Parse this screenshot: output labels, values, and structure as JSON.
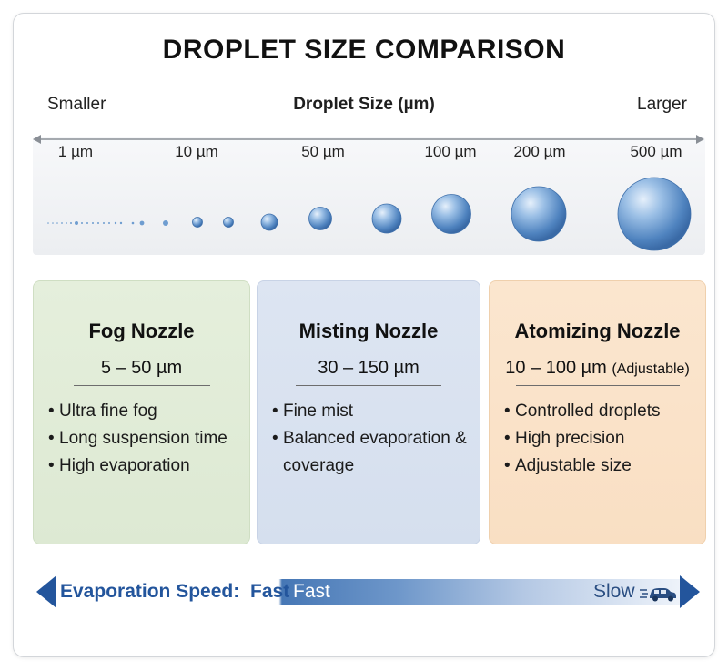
{
  "title": "DROPLET SIZE COMPARISON",
  "scale": {
    "left_label": "Smaller",
    "center_label": "Droplet Size (µm)",
    "right_label": "Larger",
    "ticks": [
      "1 µm",
      "10 µm",
      "50 µm",
      "100 µm",
      "200 µm",
      "500 µm"
    ]
  },
  "colors": {
    "droplet": "#5f93cc",
    "axis": "#8a8f96",
    "fog_panel": "#e3edd9",
    "mist_panel": "#dbe3f1",
    "atom_panel": "#fae3ca",
    "arrow": "#23559c"
  },
  "panels": {
    "fog": {
      "title": "Fog Nozzle",
      "range": "5 – 50 µm",
      "items": [
        "Ultra fine fog",
        "Long suspension time",
        "High evaporation"
      ]
    },
    "mist": {
      "title": "Misting Nozzle",
      "range": "30 – 150 µm",
      "items": [
        "Fine mist",
        "Balanced evaporation & coverage"
      ]
    },
    "atom": {
      "title": "Atomizing Nozzle",
      "range": "10 – 100 µm",
      "range_note": "(Adjustable)",
      "items": [
        "Controlled droplets",
        "High precision",
        "Adjustable size"
      ]
    }
  },
  "evaporation": {
    "label": "Evaporation Speed:",
    "fast_dark": "Fast",
    "fast_light": "Fast",
    "slow": "Slow",
    "icon": "car-icon"
  }
}
